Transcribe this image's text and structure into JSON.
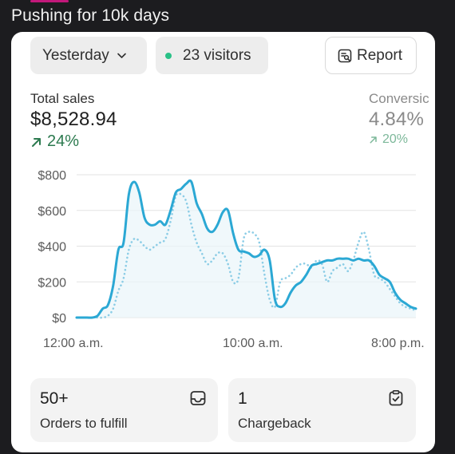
{
  "post": {
    "title": "Pushing for 10k days"
  },
  "toolbar": {
    "date_range": "Yesterday",
    "visitors": "23 visitors",
    "report_label": "Report"
  },
  "metrics": {
    "total_sales": {
      "label": "Total sales",
      "value": "$8,528.94",
      "change": "24%"
    },
    "conversion": {
      "label": "Conversic",
      "value": "4.84%",
      "change": "20%"
    }
  },
  "chart_data": {
    "type": "line",
    "x_ticks": [
      "12:00 a.m.",
      "10:00 a.m.",
      "8:00 p.m."
    ],
    "y_ticks": [
      "$0",
      "$200",
      "$400",
      "$600",
      "$800"
    ],
    "ylim": [
      0,
      800
    ],
    "grid": true,
    "series": [
      {
        "role": "current",
        "style": "solid",
        "color": "#2ba8d4",
        "values": [
          0,
          0,
          0,
          0,
          10,
          50,
          70,
          180,
          380,
          420,
          690,
          760,
          700,
          560,
          520,
          520,
          540,
          520,
          600,
          700,
          720,
          750,
          760,
          640,
          580,
          500,
          480,
          520,
          590,
          600,
          470,
          380,
          370,
          360,
          340,
          350,
          380,
          320,
          100,
          60,
          80,
          140,
          180,
          200,
          240,
          290,
          300,
          310,
          320,
          320,
          330,
          330,
          330,
          320,
          330,
          320,
          320,
          290,
          240,
          220,
          200,
          140,
          100,
          80,
          60,
          50
        ]
      },
      {
        "role": "comparison",
        "style": "dotted",
        "color": "#8ccde6",
        "values": [
          0,
          0,
          0,
          0,
          0,
          0,
          10,
          50,
          150,
          220,
          380,
          440,
          430,
          400,
          380,
          400,
          420,
          440,
          540,
          680,
          690,
          650,
          520,
          420,
          360,
          300,
          320,
          360,
          360,
          300,
          200,
          220,
          440,
          480,
          470,
          420,
          240,
          100,
          60,
          200,
          220,
          240,
          280,
          300,
          300,
          280,
          320,
          300,
          200,
          260,
          280,
          300,
          260,
          320,
          420,
          480,
          380,
          240,
          220,
          200,
          160,
          120,
          80,
          60,
          50,
          40
        ]
      }
    ]
  },
  "tiles": [
    {
      "value": "50+",
      "label": "Orders to fulfill",
      "icon": "inbox-icon"
    },
    {
      "value": "1",
      "label": "Chargeback",
      "icon": "clipboard-check-icon"
    }
  ],
  "colors": {
    "solid_line": "#2ba8d4",
    "dotted_line": "#8ccde6",
    "positive": "#2c7a4f",
    "positive_muted": "#7db89a",
    "muted_text": "#8a8a8a"
  }
}
